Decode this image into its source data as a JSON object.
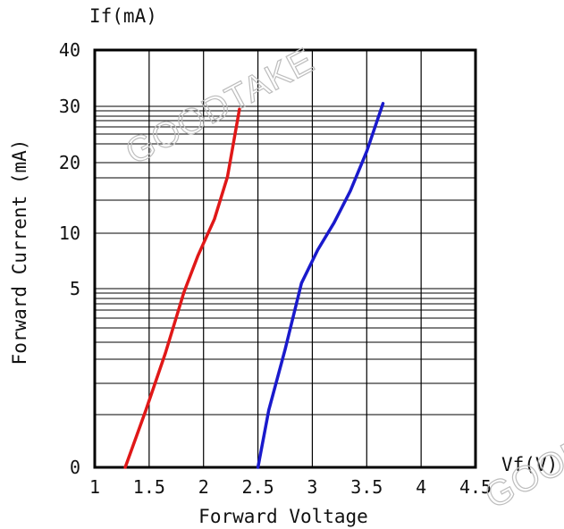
{
  "chart_data": {
    "type": "line",
    "title": "",
    "xlabel": "Forward Voltage",
    "ylabel": "Forward Current (mA)",
    "x_unit_label": "Vf(V)",
    "y_unit_label": "If(mA)",
    "xlim": [
      1,
      4.5
    ],
    "x_ticks": [
      1,
      1.5,
      2,
      2.5,
      3,
      3.5,
      4,
      4.5
    ],
    "x_tick_labels": [
      "1",
      "1.5",
      "2",
      "2.5",
      "3",
      "3.5",
      "4",
      "4.5"
    ],
    "y_ticks": [
      0,
      5,
      10,
      20,
      30,
      40
    ],
    "y_tick_labels": [
      "0",
      "5",
      "10",
      "20",
      "30",
      "40"
    ],
    "grid": true,
    "series": [
      {
        "color": "#e01818",
        "points": [
          [
            1.28,
            0
          ],
          [
            1.47,
            1.6
          ],
          [
            1.65,
            3.2
          ],
          [
            1.82,
            4.9
          ],
          [
            1.95,
            8
          ],
          [
            2.1,
            12
          ],
          [
            2.22,
            18
          ],
          [
            2.33,
            29.5
          ]
        ]
      },
      {
        "color": "#1a1acc",
        "points": [
          [
            2.5,
            0
          ],
          [
            2.6,
            1.6
          ],
          [
            2.75,
            3.3
          ],
          [
            2.9,
            5.5
          ],
          [
            3.05,
            8.5
          ],
          [
            3.2,
            11.5
          ],
          [
            3.35,
            16
          ],
          [
            3.5,
            22
          ],
          [
            3.65,
            30.5
          ]
        ]
      }
    ]
  },
  "watermarks": [
    "GOODTAKE",
    "GOODT"
  ]
}
